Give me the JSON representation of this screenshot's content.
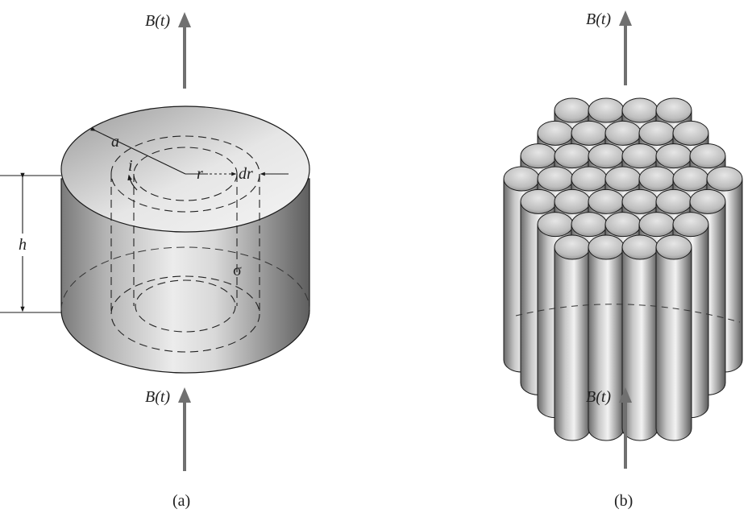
{
  "panel_a": {
    "caption": "(a)",
    "field_top_label": "B(t)",
    "field_bottom_label": "B(t)",
    "radius_label": "a",
    "current_label": "i",
    "ring_radius_label": "r",
    "ring_width_label": "dr",
    "height_label": "h",
    "conductivity_label": "σ"
  },
  "panel_b": {
    "caption": "(b)",
    "field_top_label": "B(t)",
    "field_bottom_label": "B(t)",
    "rod_count": 37
  },
  "colors": {
    "arrow": "#707070",
    "stroke": "#1a1a1a",
    "metal_dark": "#555555",
    "metal_light": "#f0f0f0"
  }
}
